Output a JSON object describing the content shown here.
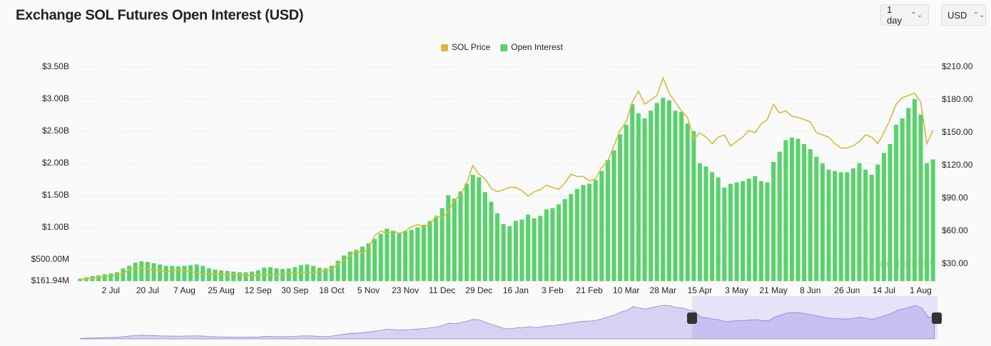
{
  "chart_data": {
    "type": "bar-line",
    "title": "Exchange SOL Futures Open Interest (USD)",
    "watermark": "coinglass",
    "legend": "top",
    "grid": true,
    "categories": [
      null,
      null,
      null,
      null,
      null,
      "2 Jul",
      null,
      null,
      null,
      null,
      null,
      "20 Jul",
      null,
      null,
      null,
      null,
      null,
      "7 Aug",
      null,
      null,
      null,
      null,
      null,
      "25 Aug",
      null,
      null,
      null,
      null,
      null,
      "12 Sep",
      null,
      null,
      null,
      null,
      null,
      "30 Sep",
      null,
      null,
      null,
      null,
      null,
      "18 Oct",
      null,
      null,
      null,
      null,
      null,
      "5 Nov",
      null,
      null,
      null,
      null,
      null,
      "23 Nov",
      null,
      null,
      null,
      null,
      null,
      "11 Dec",
      null,
      null,
      null,
      null,
      null,
      "29 Dec",
      null,
      null,
      null,
      null,
      null,
      "16 Jan",
      null,
      null,
      null,
      null,
      null,
      "3 Feb",
      null,
      null,
      null,
      null,
      null,
      "21 Feb",
      null,
      null,
      null,
      null,
      null,
      "10 Mar",
      null,
      null,
      null,
      null,
      null,
      "28 Mar",
      null,
      null,
      null,
      null,
      null,
      "15 Apr",
      null,
      null,
      null,
      null,
      null,
      "3 May",
      null,
      null,
      null,
      null,
      null,
      "21 May",
      null,
      null,
      null,
      null,
      null,
      "8 Jun",
      null,
      null,
      null,
      null,
      null,
      "26 Jun",
      null,
      null,
      null,
      null,
      null,
      "14 Jul",
      null,
      null,
      null,
      null,
      null,
      "1 Aug",
      null,
      null
    ],
    "series": [
      {
        "name": "SOL Price",
        "color": "#d4bb3a",
        "axis": "y2",
        "kind": "line",
        "values": [
          16,
          16.5,
          17,
          18,
          18.5,
          19,
          20,
          21,
          25,
          26,
          26,
          25,
          24.5,
          24,
          23,
          24,
          24,
          24,
          23,
          22,
          21,
          21,
          21,
          21,
          20,
          20,
          20,
          19.5,
          19.5,
          19.5,
          20,
          20,
          20,
          21,
          21.5,
          22,
          22,
          22.5,
          22,
          23,
          24,
          25,
          30,
          33,
          38,
          42,
          40,
          44,
          56,
          60,
          58,
          60,
          58,
          60,
          64,
          66,
          64,
          66,
          74,
          72,
          78,
          88,
          93,
          104,
          120,
          112,
          108,
          99,
          96,
          98,
          100,
          100,
          97,
          92,
          96,
          98,
          102,
          100,
          98,
          104,
          112,
          110,
          110,
          106,
          108,
          118,
          124,
          138,
          152,
          160,
          178,
          188,
          176,
          180,
          184,
          200,
          186,
          178,
          170,
          164,
          144,
          150,
          146,
          140,
          146,
          148,
          138,
          142,
          146,
          152,
          150,
          158,
          162,
          176,
          168,
          170,
          165,
          164,
          162,
          160,
          150,
          148,
          146,
          140,
          136,
          136,
          138,
          142,
          148,
          146,
          140,
          150,
          162,
          176,
          182,
          184,
          186,
          178,
          140,
          152
        ]
      },
      {
        "name": "Open Interest",
        "color": "#58d26a",
        "kind": "bar",
        "values": [
          200000000.0,
          220000000.0,
          240000000.0,
          250000000.0,
          270000000.0,
          280000000.0,
          300000000.0,
          360000000.0,
          400000000.0,
          450000000.0,
          470000000.0,
          460000000.0,
          440000000.0,
          420000000.0,
          400000000.0,
          400000000.0,
          390000000.0,
          400000000.0,
          410000000.0,
          420000000.0,
          400000000.0,
          360000000.0,
          340000000.0,
          330000000.0,
          320000000.0,
          310000000.0,
          300000000.0,
          300000000.0,
          310000000.0,
          330000000.0,
          370000000.0,
          380000000.0,
          360000000.0,
          350000000.0,
          360000000.0,
          380000000.0,
          410000000.0,
          420000000.0,
          400000000.0,
          370000000.0,
          360000000.0,
          400000000.0,
          480000000.0,
          560000000.0,
          620000000.0,
          650000000.0,
          700000000.0,
          750000000.0,
          820000000.0,
          900000000.0,
          980000000.0,
          950000000.0,
          920000000.0,
          940000000.0,
          960000000.0,
          1000000000.0,
          1040000000.0,
          1100000000.0,
          1160000000.0,
          1300000000.0,
          1500000000.0,
          1450000000.0,
          1560000000.0,
          1680000000.0,
          1820000000.0,
          1780000000.0,
          1550000000.0,
          1400000000.0,
          1220000000.0,
          1050000000.0,
          1020000000.0,
          1100000000.0,
          1120000000.0,
          1200000000.0,
          1140000000.0,
          1180000000.0,
          1280000000.0,
          1300000000.0,
          1360000000.0,
          1440000000.0,
          1520000000.0,
          1600000000.0,
          1660000000.0,
          1680000000.0,
          1740000000.0,
          1880000000.0,
          2050000000.0,
          2200000000.0,
          2450000000.0,
          2600000000.0,
          2920000000.0,
          2780000000.0,
          2700000000.0,
          2820000000.0,
          2940000000.0,
          3020000000.0,
          2980000000.0,
          2820000000.0,
          2800000000.0,
          2620000000.0,
          2500000000.0,
          2000000000.0,
          1950000000.0,
          1860000000.0,
          1780000000.0,
          1620000000.0,
          1680000000.0,
          1700000000.0,
          1720000000.0,
          1760000000.0,
          1800000000.0,
          1720000000.0,
          1700000000.0,
          2020000000.0,
          2180000000.0,
          2360000000.0,
          2400000000.0,
          2380000000.0,
          2300000000.0,
          2220000000.0,
          2100000000.0,
          2000000000.0,
          1900000000.0,
          1880000000.0,
          1860000000.0,
          1860000000.0,
          1920000000.0,
          2000000000.0,
          1900000000.0,
          1820000000.0,
          1980000000.0,
          2160000000.0,
          2300000000.0,
          2600000000.0,
          2700000000.0,
          2860000000.0,
          3000000000.0,
          2760000000.0,
          2000000000.0,
          2060000000.0
        ]
      }
    ],
    "ylim": [
      161940000,
      3500000000
    ],
    "yticks": [
      {
        "value": 161940000,
        "label": "$161.94M"
      },
      {
        "value": 500000000,
        "label": "$500.00M"
      },
      {
        "value": 1000000000,
        "label": "$1.00B"
      },
      {
        "value": 1500000000,
        "label": "$1.50B"
      },
      {
        "value": 2000000000,
        "label": "$2.00B"
      },
      {
        "value": 2500000000,
        "label": "$2.50B"
      },
      {
        "value": 3000000000,
        "label": "$3.00B"
      },
      {
        "value": 3500000000,
        "label": "$3.50B"
      }
    ],
    "y2lim": [
      14.35,
      210
    ],
    "y2ticks": [
      {
        "value": 30,
        "label": "$30.00"
      },
      {
        "value": 60,
        "label": "$60.00"
      },
      {
        "value": 90,
        "label": "$90.00"
      },
      {
        "value": 120,
        "label": "$120.00"
      },
      {
        "value": 150,
        "label": "$150.00"
      },
      {
        "value": 180,
        "label": "$180.00"
      },
      {
        "value": 210,
        "label": "$210.00"
      }
    ]
  },
  "controls": {
    "interval": "1 day",
    "currency": "USD"
  }
}
